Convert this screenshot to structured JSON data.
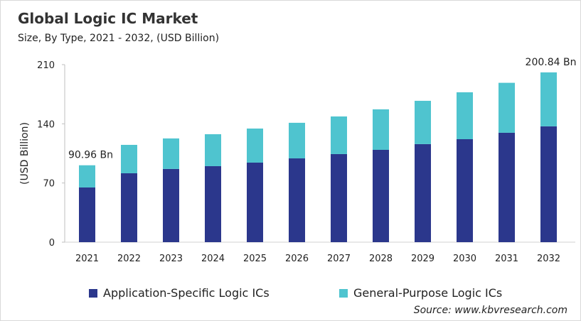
{
  "title": "Global Logic IC Market",
  "subtitle": "Size, By Type, 2021 - 2032, (USD Billion)",
  "source": "Source: www.kbvresearch.com",
  "chart_data": {
    "type": "bar",
    "stacked": true,
    "ylabel": "(USD Billion)",
    "ylim": [
      0,
      210
    ],
    "yticks": [
      0,
      70,
      140,
      210
    ],
    "grid": false,
    "legend_position": "bottom",
    "categories": [
      "2021",
      "2022",
      "2023",
      "2024",
      "2025",
      "2026",
      "2027",
      "2028",
      "2029",
      "2030",
      "2031",
      "2032"
    ],
    "series": [
      {
        "name": "Application-Specific Logic ICs",
        "color": "#2b378c",
        "values": [
          64.7,
          81.5,
          86.6,
          89.9,
          94.1,
          99.1,
          104.2,
          109.2,
          116.0,
          121.8,
          129.4,
          137.0
        ]
      },
      {
        "name": "General-Purpose Logic ICs",
        "color": "#4fc4cf",
        "values": [
          26.26,
          33.6,
          36.1,
          37.8,
          40.3,
          42.1,
          44.5,
          47.9,
          51.2,
          55.5,
          59.1,
          63.84
        ]
      }
    ],
    "annotations": [
      {
        "category": "2021",
        "text": "90.96 Bn"
      },
      {
        "category": "2032",
        "text": "200.84 Bn"
      }
    ]
  }
}
